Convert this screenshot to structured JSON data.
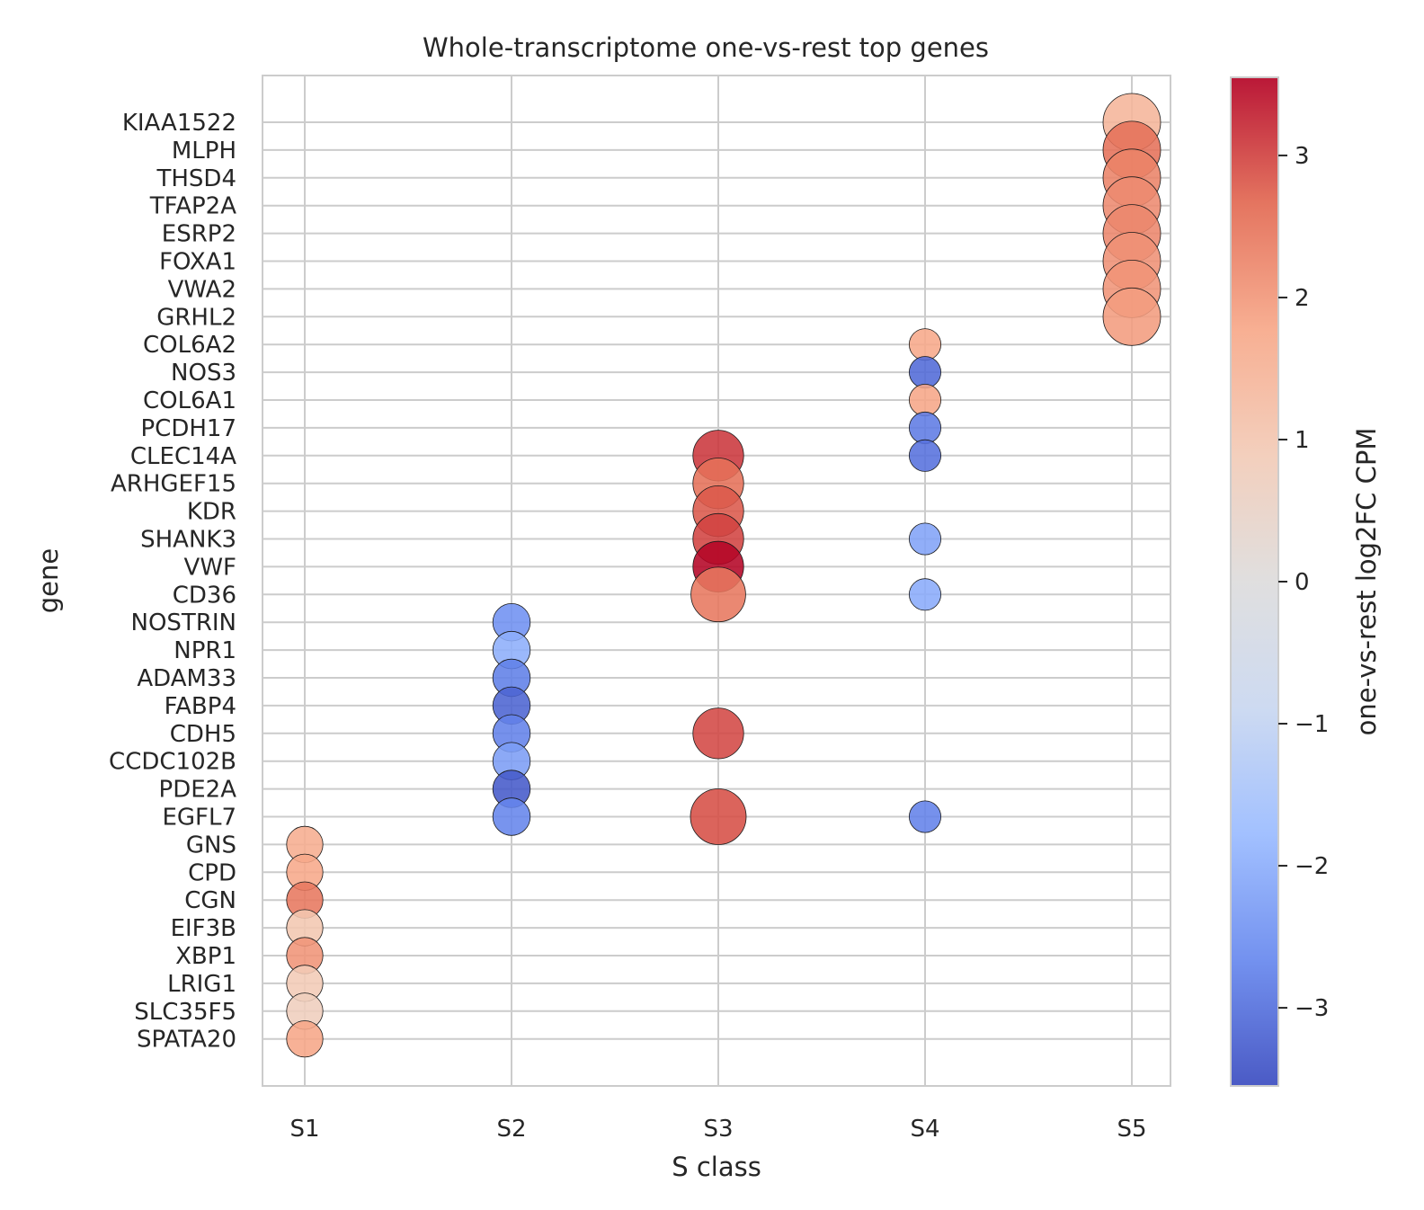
{
  "chart_data": {
    "type": "scatter",
    "title": "Whole-transcriptome one-vs-rest top genes",
    "xlabel": "S class",
    "ylabel": "gene",
    "categories": [
      "S1",
      "S2",
      "S3",
      "S4",
      "S5"
    ],
    "genes": [
      "KIAA1522",
      "MLPH",
      "THSD4",
      "TFAP2A",
      "ESRP2",
      "FOXA1",
      "VWA2",
      "GRHL2",
      "COL6A2",
      "NOS3",
      "COL6A1",
      "PCDH17",
      "CLEC14A",
      "ARHGEF15",
      "KDR",
      "SHANK3",
      "VWF",
      "CD36",
      "NOSTRIN",
      "NPR1",
      "ADAM33",
      "FABP4",
      "CDH5",
      "CCDC102B",
      "PDE2A",
      "EGFL7",
      "GNS",
      "CPD",
      "CGN",
      "EIF3B",
      "XBP1",
      "LRIG1",
      "SLC35F5",
      "SPATA20"
    ],
    "grid": true,
    "legend": "colorbar-right",
    "colorbar": {
      "label": "one-vs-rest log2FC CPM",
      "range": [
        -3.55,
        3.55
      ],
      "ticks": [
        "3",
        "2",
        "1",
        "0",
        "−1",
        "−2",
        "−3"
      ],
      "colormap": "coolwarm",
      "colors": [
        "#3b4cc0",
        "#6788ee",
        "#9abbff",
        "#c9d7f0",
        "#dddcdc",
        "#f2cbb7",
        "#f7a889",
        "#e26952",
        "#b40426"
      ]
    },
    "points": [
      {
        "gene": "KIAA1522",
        "class": "S5",
        "log2fc": 1.45,
        "size": 1.0
      },
      {
        "gene": "MLPH",
        "class": "S5",
        "log2fc": 2.55,
        "size": 1.0
      },
      {
        "gene": "THSD4",
        "class": "S5",
        "log2fc": 2.3,
        "size": 1.0
      },
      {
        "gene": "TFAP2A",
        "class": "S5",
        "log2fc": 2.2,
        "size": 1.0
      },
      {
        "gene": "ESRP2",
        "class": "S5",
        "log2fc": 2.25,
        "size": 1.0
      },
      {
        "gene": "FOXA1",
        "class": "S5",
        "log2fc": 2.1,
        "size": 1.0
      },
      {
        "gene": "VWA2",
        "class": "S5",
        "log2fc": 2.05,
        "size": 1.0
      },
      {
        "gene": "GRHL2",
        "class": "S5",
        "log2fc": 1.95,
        "size": 1.0
      },
      {
        "gene": "COL6A2",
        "class": "S4",
        "log2fc": 1.75,
        "size": 0.55
      },
      {
        "gene": "NOS3",
        "class": "S4",
        "log2fc": -3.1,
        "size": 0.55
      },
      {
        "gene": "COL6A1",
        "class": "S4",
        "log2fc": 1.8,
        "size": 0.55
      },
      {
        "gene": "PCDH17",
        "class": "S4",
        "log2fc": -2.85,
        "size": 0.55
      },
      {
        "gene": "CLEC14A",
        "class": "S4",
        "log2fc": -3.0,
        "size": 0.55
      },
      {
        "gene": "SHANK3",
        "class": "S4",
        "log2fc": -2.2,
        "size": 0.55
      },
      {
        "gene": "CD36",
        "class": "S4",
        "log2fc": -2.05,
        "size": 0.55
      },
      {
        "gene": "EGFL7",
        "class": "S4",
        "log2fc": -2.75,
        "size": 0.55
      },
      {
        "gene": "CLEC14A",
        "class": "S3",
        "log2fc": 3.1,
        "size": 0.88
      },
      {
        "gene": "ARHGEF15",
        "class": "S3",
        "log2fc": 2.55,
        "size": 0.88
      },
      {
        "gene": "KDR",
        "class": "S3",
        "log2fc": 2.8,
        "size": 0.88
      },
      {
        "gene": "SHANK3",
        "class": "S3",
        "log2fc": 3.0,
        "size": 0.88
      },
      {
        "gene": "VWF",
        "class": "S3",
        "log2fc": 3.55,
        "size": 0.88
      },
      {
        "gene": "CD36",
        "class": "S3",
        "log2fc": 2.45,
        "size": 0.95
      },
      {
        "gene": "CDH5",
        "class": "S3",
        "log2fc": 2.95,
        "size": 0.88
      },
      {
        "gene": "EGFL7",
        "class": "S3",
        "log2fc": 2.9,
        "size": 0.97
      },
      {
        "gene": "NOSTRIN",
        "class": "S2",
        "log2fc": -2.5,
        "size": 0.65
      },
      {
        "gene": "NPR1",
        "class": "S2",
        "log2fc": -2.0,
        "size": 0.65
      },
      {
        "gene": "ADAM33",
        "class": "S2",
        "log2fc": -2.8,
        "size": 0.65
      },
      {
        "gene": "FABP4",
        "class": "S2",
        "log2fc": -3.2,
        "size": 0.65
      },
      {
        "gene": "CDH5",
        "class": "S2",
        "log2fc": -2.75,
        "size": 0.65
      },
      {
        "gene": "CCDC102B",
        "class": "S2",
        "log2fc": -2.3,
        "size": 0.65
      },
      {
        "gene": "PDE2A",
        "class": "S2",
        "log2fc": -3.35,
        "size": 0.65
      },
      {
        "gene": "EGFL7",
        "class": "S2",
        "log2fc": -2.7,
        "size": 0.65
      },
      {
        "gene": "GNS",
        "class": "S1",
        "log2fc": 1.65,
        "size": 0.63
      },
      {
        "gene": "CPD",
        "class": "S1",
        "log2fc": 1.75,
        "size": 0.63
      },
      {
        "gene": "CGN",
        "class": "S1",
        "log2fc": 2.45,
        "size": 0.63
      },
      {
        "gene": "EIF3B",
        "class": "S1",
        "log2fc": 1.0,
        "size": 0.63
      },
      {
        "gene": "XBP1",
        "class": "S1",
        "log2fc": 2.05,
        "size": 0.63
      },
      {
        "gene": "LRIG1",
        "class": "S1",
        "log2fc": 0.9,
        "size": 0.63
      },
      {
        "gene": "SLC35F5",
        "class": "S1",
        "log2fc": 0.75,
        "size": 0.63
      },
      {
        "gene": "SPATA20",
        "class": "S1",
        "log2fc": 1.8,
        "size": 0.63
      }
    ]
  }
}
